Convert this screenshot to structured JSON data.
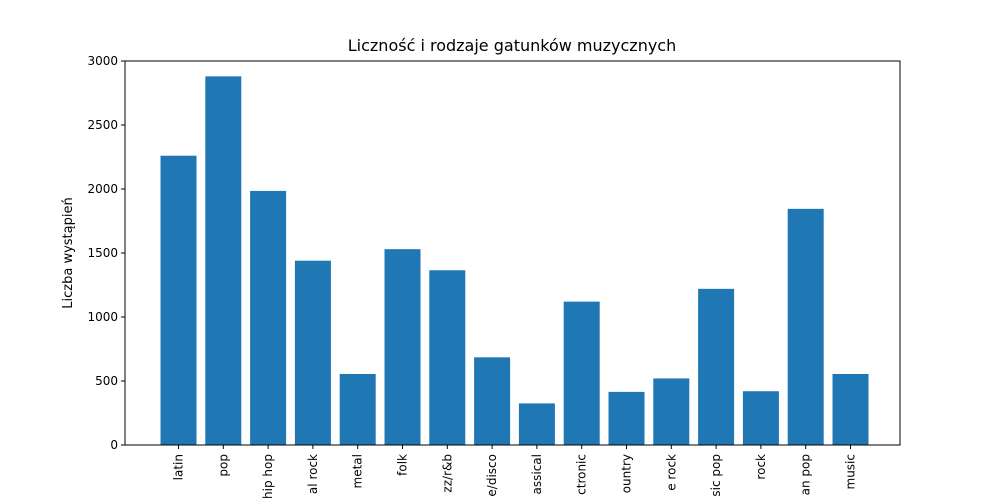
{
  "chart_data": {
    "type": "bar",
    "title": "Liczność i rodzaje gatunków muzycznych",
    "xlabel": "",
    "ylabel": "Liczba wystąpień",
    "ylim": [
      0,
      3000
    ],
    "yticks": [
      0,
      500,
      1000,
      1500,
      2000,
      2500,
      3000
    ],
    "categories": [
      "latin",
      "pop",
      "hip hop",
      "al rock",
      "metal",
      "folk",
      "zz/r&b",
      "e/disco",
      "assical",
      "ctronic",
      "ountry",
      "e rock",
      "sic pop",
      "rock",
      "an pop",
      "music"
    ],
    "values": [
      2260,
      2880,
      1985,
      1440,
      555,
      1530,
      1365,
      685,
      325,
      1120,
      415,
      520,
      1220,
      420,
      1845,
      555
    ],
    "bar_color": "#1f77b4",
    "grid": false,
    "legend": "none"
  }
}
